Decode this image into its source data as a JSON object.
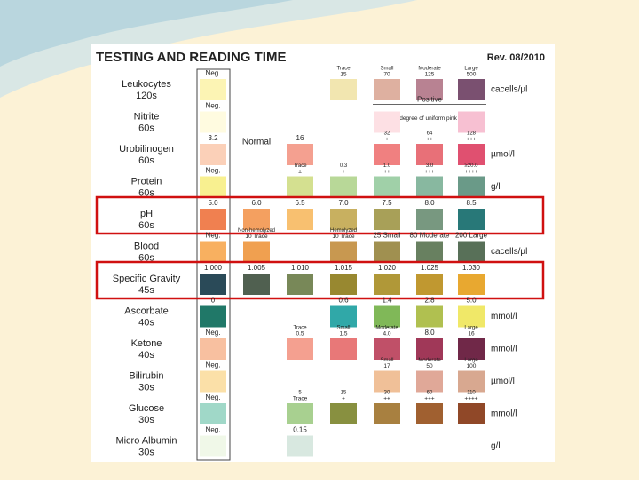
{
  "header": {
    "title": "TESTING AND READING TIME",
    "revision": "Rev. 08/2010"
  },
  "rows": [
    {
      "name": "Leukocytes",
      "time": "120s",
      "unit": "cacells/µl",
      "swatches": [
        {
          "color": "#fcf4b4",
          "label": "Neg."
        },
        null,
        null,
        {
          "color": "#f2e6b0",
          "label": "Trace",
          "sublabel": "15"
        },
        {
          "color": "#deb0a0",
          "label": "Small",
          "sublabel": "70"
        },
        {
          "color": "#b88292",
          "label": "Moderate",
          "sublabel": "125"
        },
        {
          "color": "#7a5070",
          "label": "Large",
          "sublabel": "500"
        }
      ]
    },
    {
      "name": "Nitrite",
      "time": "60s",
      "positive": "Positive",
      "note": "Any degree of uniform pink color",
      "swatches": [
        {
          "color": "#fffbe0",
          "label": "Neg."
        },
        null,
        null,
        null,
        {
          "color": "#fde0e4"
        },
        null,
        {
          "color": "#f7c0d2"
        }
      ]
    },
    {
      "name": "Urobilinogen",
      "time": "60s",
      "unit": "µmol/l",
      "normal": "Normal",
      "swatches": [
        {
          "color": "#fbd0b8",
          "label": "3.2"
        },
        null,
        {
          "color": "#f4a090",
          "label": "16"
        },
        null,
        {
          "color": "#f08080",
          "label": "32",
          "sublabel": "+"
        },
        {
          "color": "#e87078",
          "label": "64",
          "sublabel": "++"
        },
        {
          "color": "#e05070",
          "label": "128",
          "sublabel": "+++"
        }
      ]
    },
    {
      "name": "Protein",
      "time": "60s",
      "unit": "g/l",
      "swatches": [
        {
          "color": "#f8f090",
          "label": "Neg."
        },
        null,
        {
          "color": "#d4e090",
          "label": "Trace",
          "sublabel": "±"
        },
        {
          "color": "#b8d898",
          "label": "0.3",
          "sublabel": "+"
        },
        {
          "color": "#a0d0a8",
          "label": "1.0",
          "sublabel": "++"
        },
        {
          "color": "#88b8a0",
          "label": "3.0",
          "sublabel": "+++"
        },
        {
          "color": "#6a9a88",
          "label": "≥20.0",
          "sublabel": "++++"
        }
      ]
    },
    {
      "name": "pH",
      "time": "60s",
      "highlight": true,
      "swatches": [
        {
          "color": "#f08050",
          "label": "5.0"
        },
        {
          "color": "#f4a060",
          "label": "6.0"
        },
        {
          "color": "#f8c070",
          "label": "6.5"
        },
        {
          "color": "#c8b060",
          "label": "7.0"
        },
        {
          "color": "#a8a058",
          "label": "7.5"
        },
        {
          "color": "#789880",
          "label": "8.0"
        },
        {
          "color": "#287878",
          "label": "8.5"
        }
      ]
    },
    {
      "name": "Blood",
      "time": "60s",
      "unit": "cacells/µl",
      "swatches": [
        {
          "color": "#f8b060",
          "label": "Neg."
        },
        {
          "color": "#f0a050",
          "label": "Non-hemolyzed",
          "sublabel": "10 Trace"
        },
        null,
        {
          "color": "#c89850",
          "label": "Hemolyzed",
          "sublabel": "10 Trace"
        },
        {
          "color": "#a09050",
          "label": "25 Small"
        },
        {
          "color": "#688060",
          "label": "80 Moderate"
        },
        {
          "color": "#587058",
          "label": "200 Large"
        }
      ]
    },
    {
      "name": "Specific Gravity",
      "time": "45s",
      "highlight": true,
      "swatches": [
        {
          "color": "#2a4a58",
          "label": "1.000"
        },
        {
          "color": "#506050",
          "label": "1.005"
        },
        {
          "color": "#788858",
          "label": "1.010"
        },
        {
          "color": "#988830",
          "label": "1.015"
        },
        {
          "color": "#b09838",
          "label": "1.020"
        },
        {
          "color": "#c09830",
          "label": "1.025"
        },
        {
          "color": "#e8a830",
          "label": "1.030"
        }
      ]
    },
    {
      "name": "Ascorbate",
      "time": "40s",
      "unit": "mmol/l",
      "swatches": [
        {
          "color": "#207868",
          "label": "0"
        },
        null,
        null,
        {
          "color": "#30a8a8",
          "label": "0.6"
        },
        {
          "color": "#80b858",
          "label": "1.4"
        },
        {
          "color": "#b0c050",
          "label": "2.8"
        },
        {
          "color": "#f0e868",
          "label": "5.0"
        }
      ]
    },
    {
      "name": "Ketone",
      "time": "40s",
      "unit": "mmol/l",
      "swatches": [
        {
          "color": "#f8c0a0",
          "label": "Neg."
        },
        null,
        {
          "color": "#f4a090",
          "label": "Trace",
          "sublabel": "0.5"
        },
        {
          "color": "#e87878",
          "label": "Small",
          "sublabel": "1.5"
        },
        {
          "color": "#c05068",
          "label": "Moderate",
          "sublabel": "4.0"
        },
        {
          "color": "#a03858",
          "label": "8.0"
        },
        {
          "color": "#702848",
          "label": "Large",
          "sublabel": "16"
        }
      ]
    },
    {
      "name": "Bilirubin",
      "time": "30s",
      "unit": "µmol/l",
      "swatches": [
        {
          "color": "#fbe0a8",
          "label": "Neg."
        },
        null,
        null,
        null,
        {
          "color": "#f0c098",
          "label": "Small",
          "sublabel": "17"
        },
        {
          "color": "#e0a898",
          "label": "Moderate",
          "sublabel": "50"
        },
        {
          "color": "#d8a890",
          "label": "Large",
          "sublabel": "100"
        }
      ]
    },
    {
      "name": "Glucose",
      "time": "30s",
      "unit": "mmol/l",
      "swatches": [
        {
          "color": "#a0d8c8",
          "label": "Neg."
        },
        null,
        {
          "color": "#a8d090",
          "label": "5",
          "sublabel": "Trace"
        },
        {
          "color": "#889040",
          "label": "15",
          "sublabel": "+"
        },
        {
          "color": "#a88040",
          "label": "30",
          "sublabel": "++"
        },
        {
          "color": "#a06030",
          "label": "60",
          "sublabel": "+++"
        },
        {
          "color": "#904828",
          "label": "110",
          "sublabel": "++++"
        }
      ]
    },
    {
      "name": "Micro Albumin",
      "time": "30s",
      "unit": "g/l",
      "swatches": [
        {
          "color": "#f0f8e8",
          "label": "Neg."
        },
        null,
        {
          "color": "#d8e8e0",
          "label": "0.15"
        },
        null,
        null,
        null,
        null
      ]
    }
  ]
}
